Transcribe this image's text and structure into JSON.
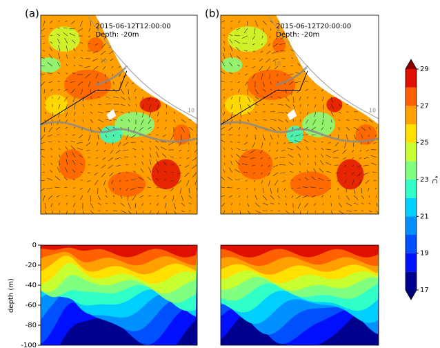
{
  "panels": [
    {
      "label": "(a)",
      "time": "2015-06-12T12:00:00",
      "depth": "Depth: -20m",
      "contour_labels": [
        "10",
        "10"
      ]
    },
    {
      "label": "(b)",
      "time": "2015-06-12T20:00:00",
      "depth": "Depth: -20m",
      "contour_labels": [
        "10",
        "10"
      ]
    }
  ],
  "section": {
    "y_label": "depth (m)",
    "ylim": [
      -100,
      0
    ],
    "yticks": [
      0,
      -20,
      -40,
      -60,
      -80,
      -100
    ]
  },
  "colorbar": {
    "label": "°C",
    "lim": [
      17,
      29
    ],
    "ticks": [
      17,
      19,
      21,
      23,
      25,
      27,
      29
    ],
    "colors": [
      "#00008f",
      "#0010ff",
      "#0050ff",
      "#0090ff",
      "#00d0ff",
      "#30ffc8",
      "#80ff80",
      "#c8ff30",
      "#ffe000",
      "#ffa000",
      "#ff6000",
      "#e01000"
    ],
    "extend_colors": [
      "#00007a",
      "#8a0000"
    ]
  }
}
